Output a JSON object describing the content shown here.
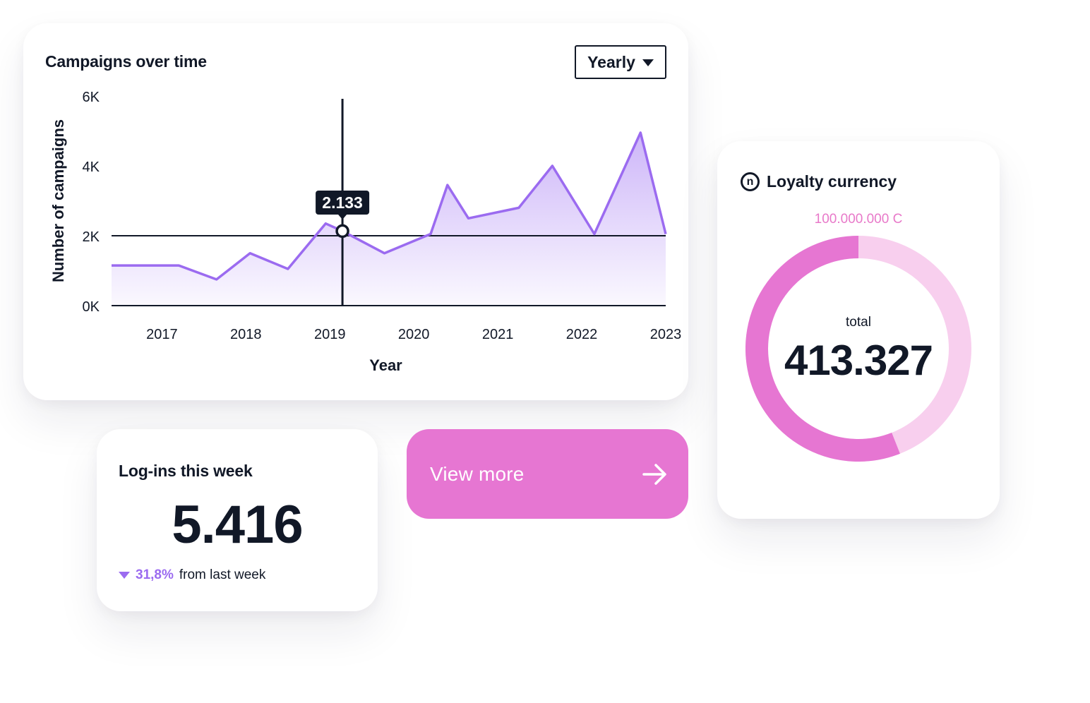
{
  "campaigns": {
    "title": "Campaigns over time",
    "period_selected": "Yearly",
    "tooltip_value": "2.133"
  },
  "chart_data": {
    "type": "area",
    "title": "Campaigns over time",
    "xlabel": "Year",
    "ylabel": "Number of campaigns",
    "x_ticks": [
      "2017",
      "2018",
      "2019",
      "2020",
      "2021",
      "2022",
      "2023"
    ],
    "y_ticks": [
      "0K",
      "2K",
      "4K",
      "6K"
    ],
    "xlim": [
      2016.7,
      2023.3
    ],
    "ylim": [
      0,
      6000
    ],
    "reference_line_y": 2000,
    "hover": {
      "x": 2019.45,
      "y": 2133,
      "label": "2.133"
    },
    "grid": false,
    "legend": "none",
    "color": "#9b6bf0",
    "series": [
      {
        "x": [
          2016.7,
          2017.1,
          2017.5,
          2017.95,
          2018.35,
          2018.8,
          2019.25,
          2019.45,
          2019.95,
          2020.5,
          2020.7,
          2020.95,
          2021.55,
          2021.95,
          2022.45,
          2023.0,
          2023.3
        ],
        "values": [
          1150,
          1150,
          1150,
          750,
          1500,
          1050,
          2350,
          2133,
          1500,
          2050,
          3450,
          2500,
          2800,
          4000,
          2050,
          4950,
          2050
        ]
      }
    ]
  },
  "loyalty": {
    "title": "Loyalty currency",
    "logo_letter": "n",
    "max_label": "100.000.000 C",
    "total_label": "total",
    "total_value": "413.327",
    "filled_fraction": 0.56,
    "filled_color": "#e676d2",
    "track_color": "#f8cfee"
  },
  "logins": {
    "title": "Log-ins this week",
    "value": "5.416",
    "change_pct": "31,8%",
    "change_text": "from last week",
    "change_direction": "down"
  },
  "cta": {
    "label": "View more",
    "icon": "arrow-right-icon"
  }
}
